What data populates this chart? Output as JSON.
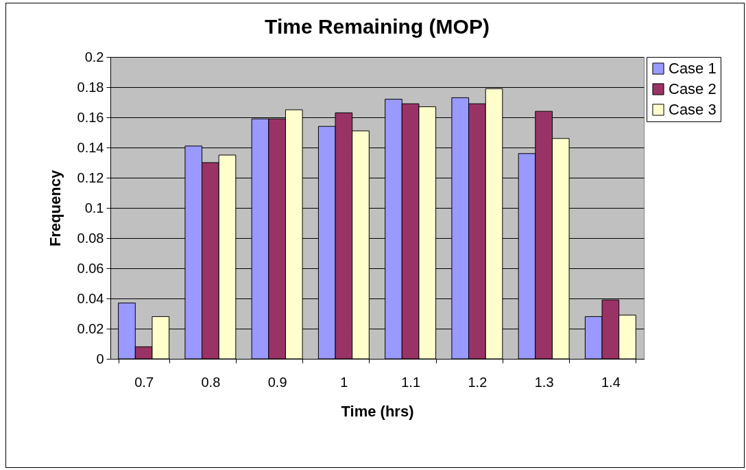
{
  "chart_data": {
    "type": "bar",
    "title": "Time Remaining (MOP)",
    "xlabel": "Time (hrs)",
    "ylabel": "Frequency",
    "categories": [
      "0.7",
      "0.8",
      "0.9",
      "1",
      "1.1",
      "1.2",
      "1.3",
      "1.4"
    ],
    "series": [
      {
        "name": "Case 1",
        "color": "#9999ff",
        "values": [
          0.037,
          0.141,
          0.159,
          0.154,
          0.172,
          0.173,
          0.136,
          0.028
        ]
      },
      {
        "name": "Case 2",
        "color": "#993366",
        "values": [
          0.008,
          0.13,
          0.159,
          0.163,
          0.169,
          0.169,
          0.164,
          0.039
        ]
      },
      {
        "name": "Case 3",
        "color": "#ffffcc",
        "values": [
          0.028,
          0.135,
          0.165,
          0.151,
          0.167,
          0.179,
          0.146,
          0.029
        ]
      }
    ],
    "ylim": [
      0,
      0.2
    ],
    "yticks": [
      0,
      0.02,
      0.04,
      0.06,
      0.08,
      0.1,
      0.12,
      0.14,
      0.16,
      0.18,
      0.2
    ],
    "grid": "y",
    "legend": "right"
  }
}
